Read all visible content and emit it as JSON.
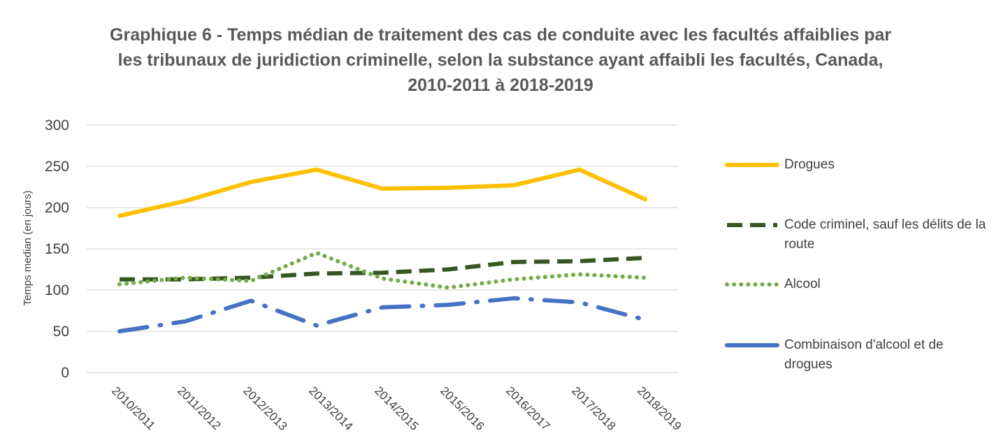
{
  "chart_data": {
    "type": "line",
    "title_lines": [
      "Graphique 6 - Temps médian de traitement des cas de conduite avec les facultés affaiblies par",
      "les tribunaux de juridiction criminelle, selon la substance ayant affaibli les facultés, Canada,",
      "2010-2011 à 2018-2019"
    ],
    "ylabel": "Temps median (en jours)",
    "xlabel": "",
    "categories": [
      "2010/2011",
      "2011/2012",
      "2012/2013",
      "2013/2014",
      "2014/2015",
      "2015/2016",
      "2016/2017",
      "2017/2018",
      "2018/2019"
    ],
    "ylim": [
      0,
      300
    ],
    "yticks": [
      0,
      50,
      100,
      150,
      200,
      250,
      300
    ],
    "grid": true,
    "legend_position": "right",
    "series": [
      {
        "name": "Drogues",
        "color": "#FFC000",
        "style": "solid",
        "values": [
          190,
          208,
          231,
          246,
          223,
          224,
          227,
          246,
          210
        ]
      },
      {
        "name": "Code criminel, sauf les délits de la route",
        "color": "#375623",
        "style": "dashed",
        "values": [
          113,
          113,
          115,
          120,
          121,
          125,
          134,
          135,
          139
        ]
      },
      {
        "name": "Alcool",
        "color": "#70AD47",
        "style": "dotted",
        "values": [
          107,
          115,
          111,
          145,
          114,
          103,
          113,
          119,
          115
        ]
      },
      {
        "name": "Combinaison d'alcool et de drogues",
        "color": "#4472C4",
        "style": "longdashdot",
        "values": [
          50,
          62,
          87,
          57,
          79,
          82,
          90,
          85,
          64
        ]
      }
    ]
  }
}
